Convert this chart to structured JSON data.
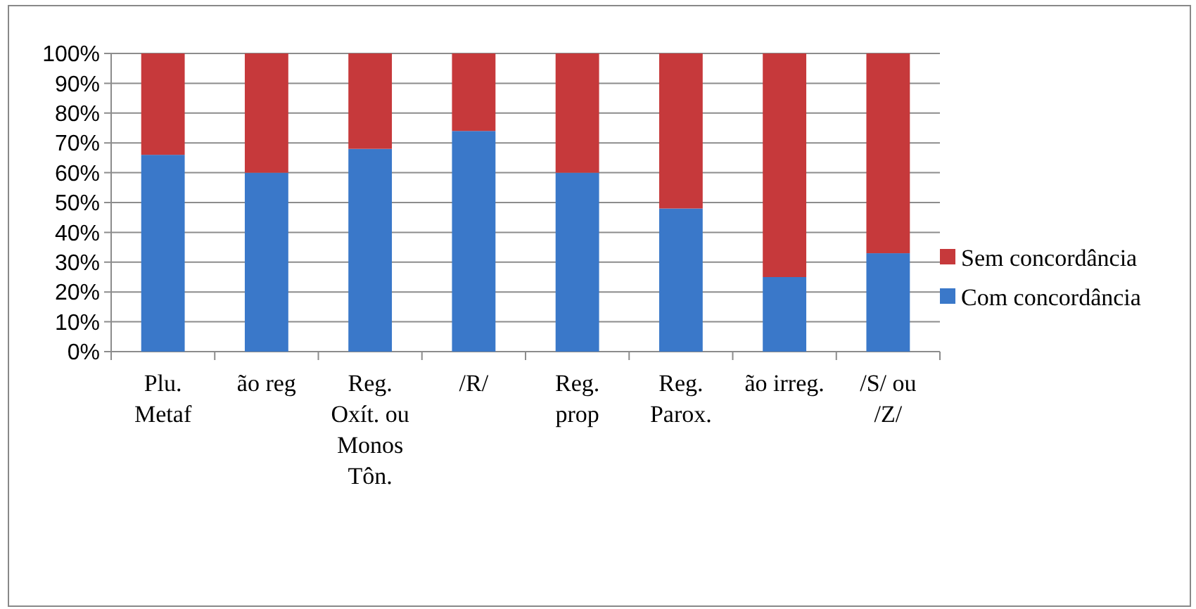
{
  "chart_data": {
    "type": "bar",
    "stacked": true,
    "categories": [
      "Plu.\nMetaf",
      "ão reg",
      "Reg.\nOxít. ou\nMonos\nTôn.",
      "/R/",
      "Reg.\nprop",
      "Reg.\nParox.",
      "ão irreg.",
      "/S/ ou\n/Z/"
    ],
    "series": [
      {
        "name": "Com concordância",
        "color": "#3a78c9",
        "values": [
          66,
          60,
          68,
          74,
          60,
          48,
          25,
          33
        ]
      },
      {
        "name": "Sem concordância",
        "color": "#c6393b",
        "values": [
          34,
          40,
          32,
          26,
          40,
          52,
          75,
          67
        ]
      }
    ],
    "ylim": [
      0,
      100
    ],
    "yticks": [
      {
        "value": 0,
        "label": "0%"
      },
      {
        "value": 10,
        "label": "10%"
      },
      {
        "value": 20,
        "label": "20%"
      },
      {
        "value": 30,
        "label": "30%"
      },
      {
        "value": 40,
        "label": "40%"
      },
      {
        "value": 50,
        "label": "50%"
      },
      {
        "value": 60,
        "label": "60%"
      },
      {
        "value": 70,
        "label": "70%"
      },
      {
        "value": 80,
        "label": "80%"
      },
      {
        "value": 90,
        "label": "90%"
      },
      {
        "value": 100,
        "label": "100%"
      }
    ],
    "grid": "y",
    "legend": "right"
  }
}
